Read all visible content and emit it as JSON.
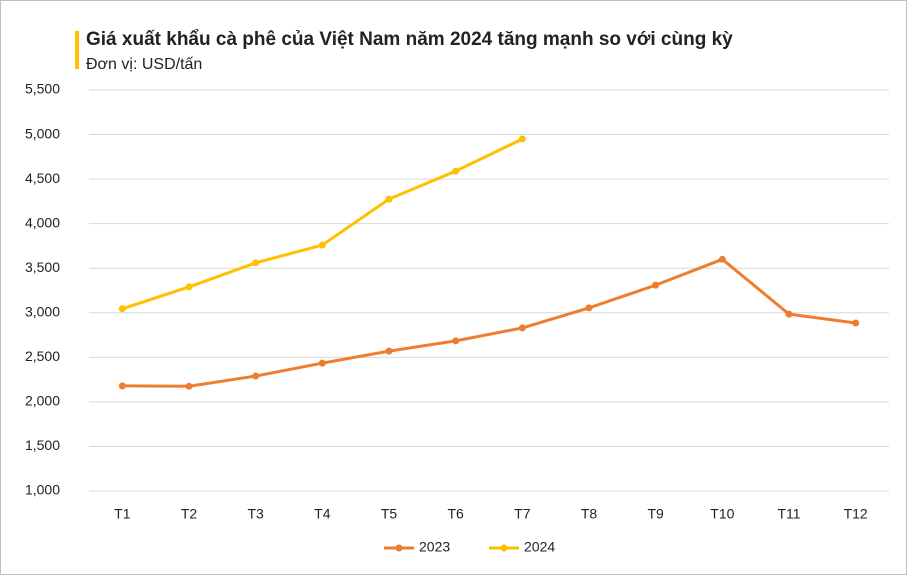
{
  "chart_data": {
    "type": "line",
    "title": "Giá xuất khẩu cà phê của Việt Nam năm 2024 tăng mạnh so với cùng kỳ",
    "subtitle": "Đơn vị: USD/tấn",
    "categories": [
      "T1",
      "T2",
      "T3",
      "T4",
      "T5",
      "T6",
      "T7",
      "T8",
      "T9",
      "T10",
      "T11",
      "T12"
    ],
    "series": [
      {
        "name": "2023",
        "color": "#ed7d31",
        "values": [
          2180,
          2175,
          2290,
          2435,
          2570,
          2685,
          2830,
          3055,
          3310,
          3600,
          2985,
          2885
        ]
      },
      {
        "name": "2024",
        "color": "#ffc000",
        "values": [
          3045,
          3290,
          3560,
          3760,
          4275,
          4590,
          4950,
          null,
          null,
          null,
          null,
          null
        ]
      }
    ],
    "ylim": [
      1000,
      5500
    ],
    "yticks": [
      {
        "value": 1000,
        "label": "1,000"
      },
      {
        "value": 1500,
        "label": "1,500"
      },
      {
        "value": 2000,
        "label": "2,000"
      },
      {
        "value": 2500,
        "label": "2,500"
      },
      {
        "value": 3000,
        "label": "3,000"
      },
      {
        "value": 3500,
        "label": "3,500"
      },
      {
        "value": 4000,
        "label": "4,000"
      },
      {
        "value": 4500,
        "label": "4,500"
      },
      {
        "value": 5000,
        "label": "5,000"
      },
      {
        "value": 5500,
        "label": "5,500"
      }
    ],
    "grid": true,
    "legend": "bottom"
  }
}
